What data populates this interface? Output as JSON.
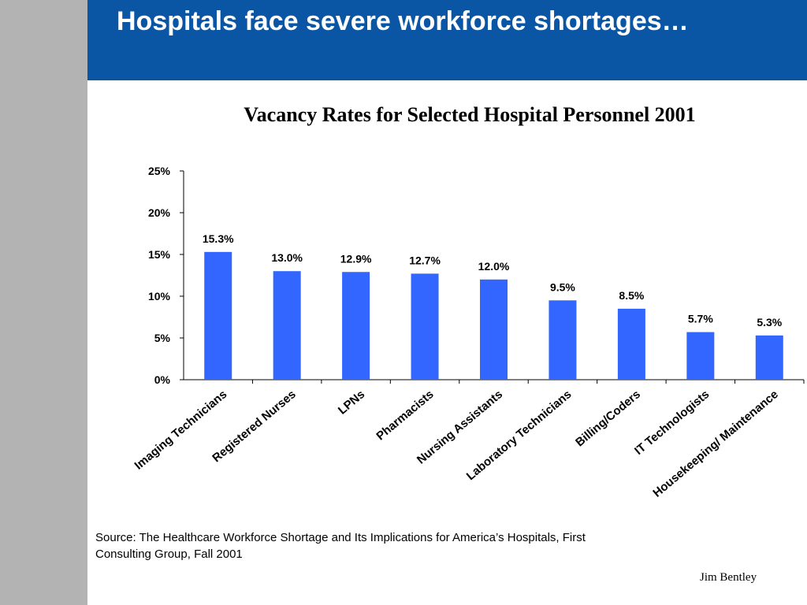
{
  "slide": {
    "title": "Hospitals face severe workforce shortages…",
    "source": "Source:  The Healthcare Workforce Shortage and Its Implications for America’s Hospitals, First Consulting Group, Fall 2001",
    "author": "Jim Bentley"
  },
  "colors": {
    "header": "#0b56a4",
    "side_bar": "#b3b3b3",
    "bar": "#3366ff"
  },
  "chart_data": {
    "type": "bar",
    "title": "Vacancy Rates for Selected Hospital Personnel 2001",
    "categories": [
      "Imaging Technicians",
      "Registered Nurses",
      "LPNs",
      "Pharmacists",
      "Nursing Assistants",
      "Laboratory Technicians",
      "Billing/Coders",
      "IT Technologists",
      "Housekeeping/ Maintenance"
    ],
    "values": [
      15.3,
      13.0,
      12.9,
      12.7,
      12.0,
      9.5,
      8.5,
      5.7,
      5.3
    ],
    "value_labels": [
      "15.3%",
      "13.0%",
      "12.9%",
      "12.7%",
      "12.0%",
      "9.5%",
      "8.5%",
      "5.7%",
      "5.3%"
    ],
    "yticks": [
      0,
      5,
      10,
      15,
      20,
      25
    ],
    "ytick_labels": [
      "0%",
      "5%",
      "10%",
      "15%",
      "20%",
      "25%"
    ],
    "ylim": [
      0,
      25
    ],
    "xlabel": "",
    "ylabel": "",
    "grid": false,
    "legend": "none"
  }
}
